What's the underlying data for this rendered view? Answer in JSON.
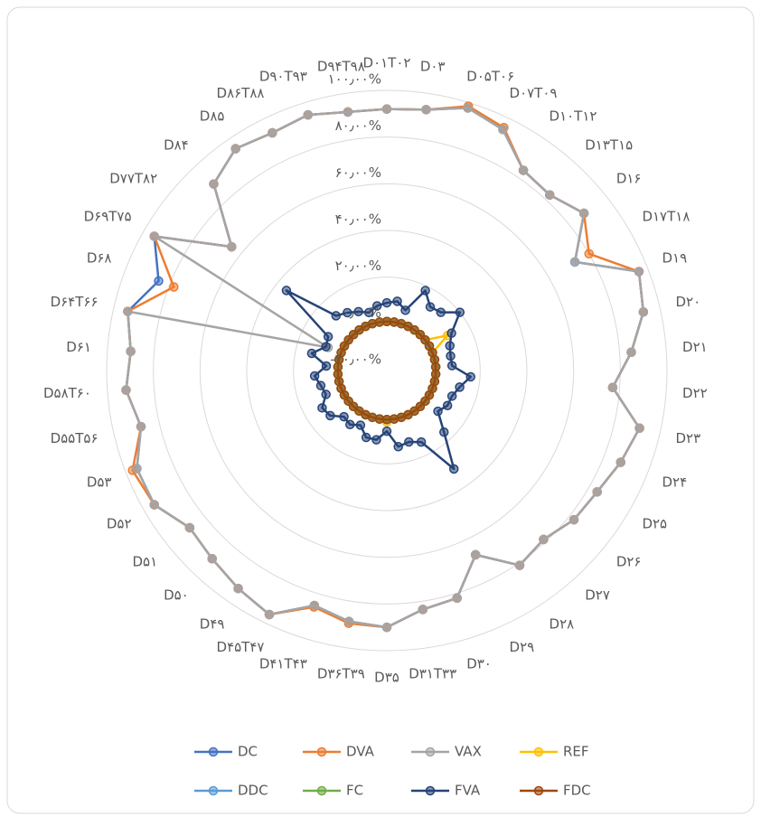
{
  "chart_data": {
    "type": "radar",
    "categories": [
      "D۰۱T۰۲",
      "D۰۳",
      "D۰۵T۰۶",
      "D۰۷T۰۹",
      "D۱۰T۱۲",
      "D۱۳T۱۵",
      "D۱۶",
      "D۱۷T۱۸",
      "D۱۹",
      "D۲۰",
      "D۲۱",
      "D۲۲",
      "D۲۳",
      "D۲۴",
      "D۲۵",
      "D۲۶",
      "D۲۷",
      "D۲۸",
      "D۲۹",
      "D۳۰",
      "D۳۱T۳۳",
      "D۳۵",
      "D۳۶T۳۹",
      "D۴۱T۴۳",
      "D۴۵T۴۷",
      "D۴۹",
      "D۵۰",
      "D۵۱",
      "D۵۲",
      "D۵۳",
      "D۵۵T۵۶",
      "D۵۸T۶۰",
      "D۶۱",
      "D۶۴T۶۶",
      "D۶۸",
      "D۶۹T۷۵",
      "D۷۷T۸۲",
      "D۸۴",
      "D۸۵",
      "D۸۶T۸۸",
      "D۹۰T۹۳",
      "D۹۴T۹۸"
    ],
    "ylim": [
      -20,
      100
    ],
    "yticks": [
      {
        "value": -20,
        "label": "-۲۰٫۰۰%"
      },
      {
        "value": 0,
        "label": "۰٫۰۰%"
      },
      {
        "value": 20,
        "label": "۲۰٫۰۰%"
      },
      {
        "value": 40,
        "label": "۴۰٫۰۰%"
      },
      {
        "value": 60,
        "label": "۶۰٫۰۰%"
      },
      {
        "value": 80,
        "label": "۸۰٫۰۰%"
      },
      {
        "value": 100,
        "label": "۱۰۰٫۰۰%"
      }
    ],
    "grid": true,
    "series": [
      {
        "name": "DC",
        "color": "#4472c4",
        "values": [
          92,
          93,
          97.7,
          94.6,
          83.8,
          82.6,
          88,
          73,
          96,
          92.7,
          85,
          77,
          91,
          87.6,
          84,
          82.5,
          78.7,
          81,
          67.6,
          82,
          83.5,
          90,
          88.7,
          85.3,
          96,
          93,
          90,
          88,
          95,
          95,
          88,
          92,
          90,
          93.8,
          85,
          95,
          65,
          89,
          95,
          93,
          94.6,
          92
        ]
      },
      {
        "name": "DVA",
        "color": "#ed7d31",
        "values": [
          92,
          93,
          98.5,
          95.5,
          83.8,
          82.6,
          88,
          80,
          96,
          92.7,
          85,
          77,
          91,
          87.6,
          84,
          82.5,
          78.7,
          81,
          67.6,
          82,
          83.5,
          90,
          89.5,
          86,
          96,
          93,
          90,
          88,
          95,
          97,
          88,
          92,
          90,
          93.8,
          78,
          95,
          65,
          89,
          95,
          93,
          94.6,
          92
        ]
      },
      {
        "name": "VAX",
        "color": "#a5a5a5",
        "values": [
          92,
          93,
          97.7,
          94.6,
          83.8,
          82.6,
          88,
          73,
          96,
          92.7,
          85,
          77,
          91,
          87.6,
          84,
          82.5,
          78.7,
          81,
          67.6,
          82,
          83.5,
          90,
          88.7,
          85.3,
          96,
          93,
          90,
          88,
          95,
          95,
          88,
          92,
          90,
          93.8,
          7,
          95,
          65,
          89,
          95,
          93,
          94.6,
          92
        ]
      },
      {
        "name": "REF",
        "color": "#ffc000",
        "values": [
          1,
          1,
          1,
          1,
          1,
          1,
          1,
          10,
          1,
          1,
          1,
          1,
          1,
          1,
          1,
          1,
          1,
          1,
          1,
          1,
          1,
          2,
          1,
          1,
          1,
          1,
          1,
          1,
          1,
          1,
          1,
          1,
          1,
          1,
          1,
          1,
          1,
          1,
          1,
          1,
          1,
          1
        ]
      },
      {
        "name": "DDC",
        "color": "#5b9bd5",
        "values": [
          1,
          1,
          1,
          1,
          1,
          1,
          1,
          1,
          1,
          1,
          1,
          1,
          1,
          1,
          1,
          1,
          1,
          1,
          1,
          1,
          1,
          1,
          1,
          1,
          1,
          1,
          1,
          1,
          1,
          1,
          1,
          1,
          1,
          1,
          1,
          1,
          1,
          1,
          1,
          1,
          1,
          1
        ]
      },
      {
        "name": "FC",
        "color": "#70ad47",
        "values": [
          1,
          1,
          1,
          1,
          1,
          1,
          1,
          1,
          1,
          1,
          1,
          1,
          1,
          1,
          1,
          1,
          1,
          1,
          1,
          1,
          1,
          1,
          1,
          1,
          1,
          1,
          1,
          1,
          1,
          1,
          1,
          1,
          1,
          1,
          1,
          1,
          1,
          1,
          1,
          1,
          1,
          1
        ]
      },
      {
        "name": "FVA",
        "color": "#264478",
        "values": [
          9,
          10,
          7,
          18,
          13,
          14,
          20,
          12,
          9,
          8,
          8,
          16,
          12,
          10,
          10,
          8,
          16,
          31,
          14,
          12,
          13,
          6,
          10,
          10,
          6,
          8,
          7,
          11,
          12,
          8,
          9,
          11,
          6,
          13,
          8,
          9,
          35,
          12,
          10,
          8,
          6,
          8
        ]
      },
      {
        "name": "FDC",
        "color": "#9e480e",
        "values": [
          1,
          1,
          1,
          1,
          1,
          1,
          1,
          1,
          1,
          1,
          1,
          1,
          1,
          1,
          1,
          1,
          1,
          1,
          1,
          1,
          1,
          1,
          1,
          1,
          1,
          1,
          1,
          1,
          1,
          1,
          1,
          1,
          1,
          1,
          1,
          1,
          1,
          1,
          1,
          1,
          1,
          1
        ]
      }
    ],
    "legend": "bottom"
  }
}
